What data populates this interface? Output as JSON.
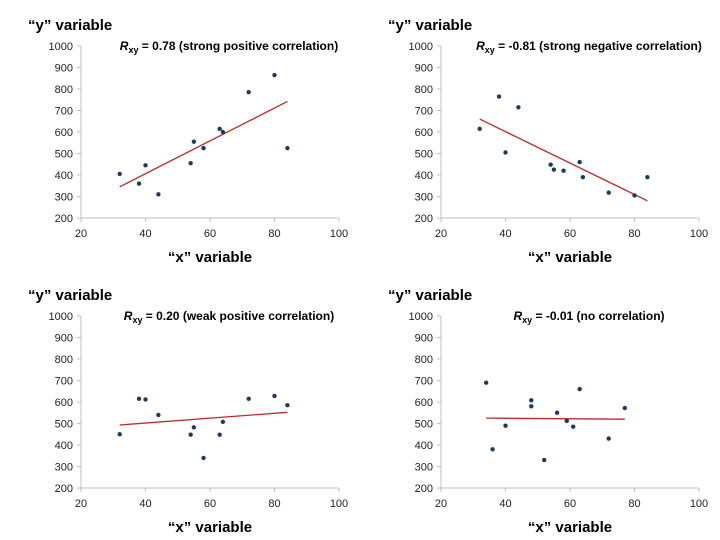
{
  "chart_data": [
    {
      "type": "scatter",
      "title": {
        "symbol": "R",
        "subscript": "xy",
        "value": "= 0.78",
        "description": "(strong positive correlation)"
      },
      "xlabel": "“x” variable",
      "ylabel": "“y” variable",
      "xlim": [
        20,
        100
      ],
      "ylim": [
        200,
        1000
      ],
      "x_ticks": [
        "20",
        "40",
        "60",
        "80",
        "100"
      ],
      "y_ticks": [
        "200",
        "300",
        "400",
        "500",
        "600",
        "700",
        "800",
        "900",
        "1000"
      ],
      "points": [
        {
          "x": 32,
          "y": 405
        },
        {
          "x": 38,
          "y": 360
        },
        {
          "x": 40,
          "y": 445
        },
        {
          "x": 44,
          "y": 310
        },
        {
          "x": 54,
          "y": 455
        },
        {
          "x": 55,
          "y": 555
        },
        {
          "x": 58,
          "y": 525
        },
        {
          "x": 63,
          "y": 615
        },
        {
          "x": 64,
          "y": 600
        },
        {
          "x": 72,
          "y": 785
        },
        {
          "x": 80,
          "y": 865
        },
        {
          "x": 84,
          "y": 525
        }
      ],
      "trendline": {
        "x": [
          32,
          84
        ],
        "y": [
          345,
          742
        ]
      },
      "grid": false
    },
    {
      "type": "scatter",
      "title": {
        "symbol": "R",
        "subscript": "xy",
        "value": "= -0.81",
        "description": "(strong negative correlation)"
      },
      "xlabel": "“x” variable",
      "ylabel": "“y” variable",
      "xlim": [
        20,
        100
      ],
      "ylim": [
        200,
        1000
      ],
      "x_ticks": [
        "20",
        "40",
        "60",
        "80",
        "100"
      ],
      "y_ticks": [
        "200",
        "300",
        "400",
        "500",
        "600",
        "700",
        "800",
        "900",
        "1000"
      ],
      "points": [
        {
          "x": 32,
          "y": 615
        },
        {
          "x": 38,
          "y": 765
        },
        {
          "x": 40,
          "y": 505
        },
        {
          "x": 44,
          "y": 715
        },
        {
          "x": 54,
          "y": 448
        },
        {
          "x": 55,
          "y": 425
        },
        {
          "x": 58,
          "y": 420
        },
        {
          "x": 63,
          "y": 460
        },
        {
          "x": 64,
          "y": 390
        },
        {
          "x": 72,
          "y": 318
        },
        {
          "x": 80,
          "y": 305
        },
        {
          "x": 84,
          "y": 390
        }
      ],
      "trendline": {
        "x": [
          32,
          84
        ],
        "y": [
          660,
          280
        ]
      },
      "grid": false
    },
    {
      "type": "scatter",
      "title": {
        "symbol": "R",
        "subscript": "xy",
        "value": "= 0.20",
        "description": "(weak positive correlation)"
      },
      "xlabel": "“x” variable",
      "ylabel": "“y” variable",
      "xlim": [
        20,
        100
      ],
      "ylim": [
        200,
        1000
      ],
      "x_ticks": [
        "20",
        "40",
        "60",
        "80",
        "100"
      ],
      "y_ticks": [
        "200",
        "300",
        "400",
        "500",
        "600",
        "700",
        "800",
        "900",
        "1000"
      ],
      "points": [
        {
          "x": 32,
          "y": 450
        },
        {
          "x": 38,
          "y": 615
        },
        {
          "x": 40,
          "y": 612
        },
        {
          "x": 44,
          "y": 540
        },
        {
          "x": 54,
          "y": 448
        },
        {
          "x": 55,
          "y": 482
        },
        {
          "x": 58,
          "y": 340
        },
        {
          "x": 63,
          "y": 448
        },
        {
          "x": 64,
          "y": 508
        },
        {
          "x": 72,
          "y": 615
        },
        {
          "x": 80,
          "y": 628
        },
        {
          "x": 84,
          "y": 585
        }
      ],
      "trendline": {
        "x": [
          32,
          84
        ],
        "y": [
          493,
          552
        ]
      },
      "grid": false
    },
    {
      "type": "scatter",
      "title": {
        "symbol": "R",
        "subscript": "xy",
        "value": "= -0.01",
        "description": "(no correlation)"
      },
      "xlabel": "“x” variable",
      "ylabel": "“y” variable",
      "xlim": [
        20,
        100
      ],
      "ylim": [
        200,
        1000
      ],
      "x_ticks": [
        "20",
        "40",
        "60",
        "80",
        "100"
      ],
      "y_ticks": [
        "200",
        "300",
        "400",
        "500",
        "600",
        "700",
        "800",
        "900",
        "1000"
      ],
      "points": [
        {
          "x": 34,
          "y": 690
        },
        {
          "x": 36,
          "y": 380
        },
        {
          "x": 40,
          "y": 490
        },
        {
          "x": 48,
          "y": 608
        },
        {
          "x": 48,
          "y": 580
        },
        {
          "x": 52,
          "y": 330
        },
        {
          "x": 56,
          "y": 550
        },
        {
          "x": 59,
          "y": 512
        },
        {
          "x": 61,
          "y": 485
        },
        {
          "x": 63,
          "y": 660
        },
        {
          "x": 72,
          "y": 430
        },
        {
          "x": 77,
          "y": 572
        }
      ],
      "trendline": {
        "x": [
          34,
          77
        ],
        "y": [
          525,
          520
        ]
      },
      "grid": false
    }
  ],
  "colors": {
    "points": "#1f3b57",
    "trendline": "#c0292b",
    "axis": "#bfbfbf"
  }
}
